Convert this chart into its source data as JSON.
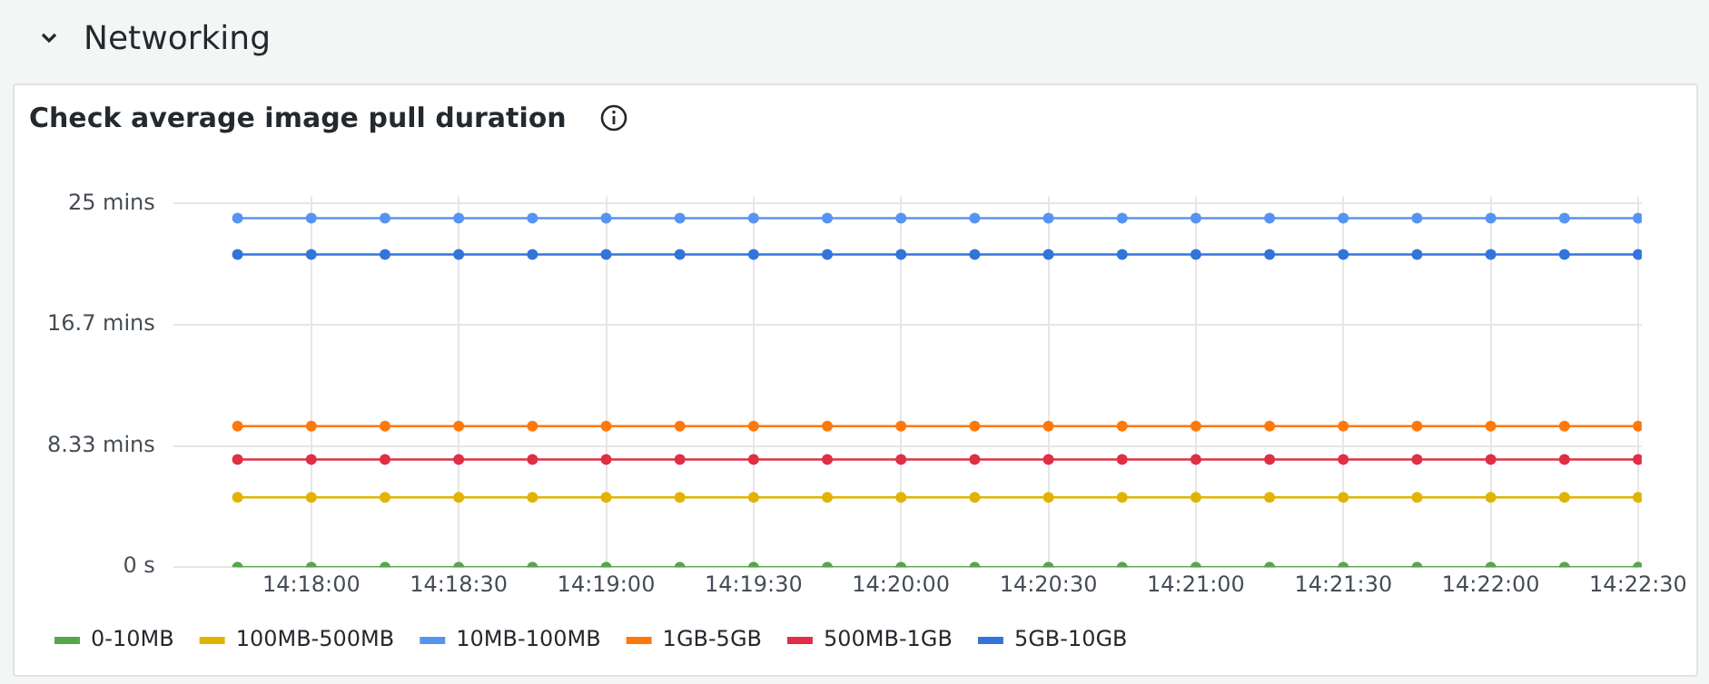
{
  "chart_data": {
    "type": "line",
    "title": "Check average image pull duration",
    "annotations": [
      "Networking"
    ],
    "x": [
      14.295833,
      14.3,
      14.304167,
      14.308333,
      14.3125,
      14.316667,
      14.320833,
      14.325,
      14.329167,
      14.333333,
      14.3375,
      14.341667,
      14.345833,
      14.35,
      14.354167,
      14.358333,
      14.3625,
      14.366667,
      14.370833,
      14.375
    ],
    "xlim": [
      14.2922,
      14.3752
    ],
    "xticks": [
      {
        "value": 14.3,
        "label": "14:18:00"
      },
      {
        "value": 14.308333,
        "label": "14:18:30"
      },
      {
        "value": 14.316667,
        "label": "14:19:00"
      },
      {
        "value": 14.325,
        "label": "14:19:30"
      },
      {
        "value": 14.333333,
        "label": "14:20:00"
      },
      {
        "value": 14.341667,
        "label": "14:20:30"
      },
      {
        "value": 14.35,
        "label": "14:21:00"
      },
      {
        "value": 14.358333,
        "label": "14:21:30"
      },
      {
        "value": 14.366667,
        "label": "14:22:00"
      },
      {
        "value": 14.375,
        "label": "14:22:30"
      }
    ],
    "ylim": [
      0,
      25.5
    ],
    "yticks": [
      {
        "value": 0,
        "label": "0 s"
      },
      {
        "value": 8.333,
        "label": "8.33 mins"
      },
      {
        "value": 16.667,
        "label": "16.7 mins"
      },
      {
        "value": 25,
        "label": "25 mins"
      }
    ],
    "series": [
      {
        "name": "0-10MB",
        "color": "#56a64b",
        "values": [
          0,
          0,
          0,
          0,
          0,
          0,
          0,
          0,
          0,
          0,
          0,
          0,
          0,
          0,
          0,
          0,
          0,
          0,
          0,
          0
        ]
      },
      {
        "name": "100MB-500MB",
        "color": "#e0b400",
        "values": [
          4.8,
          4.8,
          4.8,
          4.8,
          4.8,
          4.8,
          4.8,
          4.8,
          4.8,
          4.8,
          4.8,
          4.8,
          4.8,
          4.8,
          4.8,
          4.8,
          4.8,
          4.8,
          4.8,
          4.8
        ]
      },
      {
        "name": "10MB-100MB",
        "color": "#5794f2",
        "values": [
          24,
          24,
          24,
          24,
          24,
          24,
          24,
          24,
          24,
          24,
          24,
          24,
          24,
          24,
          24,
          24,
          24,
          24,
          24,
          24
        ]
      },
      {
        "name": "1GB-5GB",
        "color": "#ff780a",
        "values": [
          9.7,
          9.7,
          9.7,
          9.7,
          9.7,
          9.7,
          9.7,
          9.7,
          9.7,
          9.7,
          9.7,
          9.7,
          9.7,
          9.7,
          9.7,
          9.7,
          9.7,
          9.7,
          9.7,
          9.7
        ]
      },
      {
        "name": "500MB-1GB",
        "color": "#e02f44",
        "values": [
          7.4,
          7.4,
          7.4,
          7.4,
          7.4,
          7.4,
          7.4,
          7.4,
          7.4,
          7.4,
          7.4,
          7.4,
          7.4,
          7.4,
          7.4,
          7.4,
          7.4,
          7.4,
          7.4,
          7.4
        ]
      },
      {
        "name": "5GB-10GB",
        "color": "#3274d9",
        "values": [
          21.5,
          21.5,
          21.5,
          21.5,
          21.5,
          21.5,
          21.5,
          21.5,
          21.5,
          21.5,
          21.5,
          21.5,
          21.5,
          21.5,
          21.5,
          21.5,
          21.5,
          21.5,
          21.5,
          21.5
        ]
      }
    ],
    "grid": true,
    "legend": "bottom left",
    "marker": "circle",
    "line_style": "solid"
  }
}
